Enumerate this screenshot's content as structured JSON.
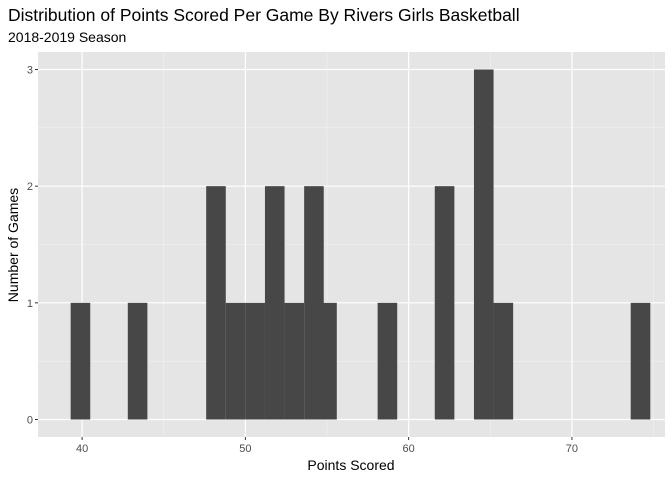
{
  "chart_data": {
    "type": "bar",
    "title": "Distribution of Points Scored Per Game By Rivers Girls Basketball",
    "subtitle": "2018-2019 Season",
    "xlabel": "Points Scored",
    "ylabel": "Number of Games",
    "x_ticks": [
      40,
      50,
      60,
      70
    ],
    "y_ticks": [
      0,
      1,
      2,
      3
    ],
    "xlim": [
      37.3,
      75.7
    ],
    "ylim": [
      -0.15,
      3.15
    ],
    "bin_width": 1.2,
    "bins": [
      {
        "center": 39.9,
        "count": 1
      },
      {
        "center": 43.4,
        "count": 1
      },
      {
        "center": 48.2,
        "count": 2
      },
      {
        "center": 49.4,
        "count": 1
      },
      {
        "center": 50.6,
        "count": 1
      },
      {
        "center": 51.8,
        "count": 2
      },
      {
        "center": 53.0,
        "count": 1
      },
      {
        "center": 54.2,
        "count": 2
      },
      {
        "center": 55.0,
        "count": 1
      },
      {
        "center": 58.7,
        "count": 1
      },
      {
        "center": 62.2,
        "count": 2
      },
      {
        "center": 64.6,
        "count": 3
      },
      {
        "center": 65.8,
        "count": 1
      },
      {
        "center": 74.2,
        "count": 1
      }
    ],
    "grid": true,
    "colors": {
      "bar": "#474747",
      "panel": "#e5e5e5",
      "grid_major": "#ffffff",
      "grid_minor": "#f2f2f2"
    }
  }
}
